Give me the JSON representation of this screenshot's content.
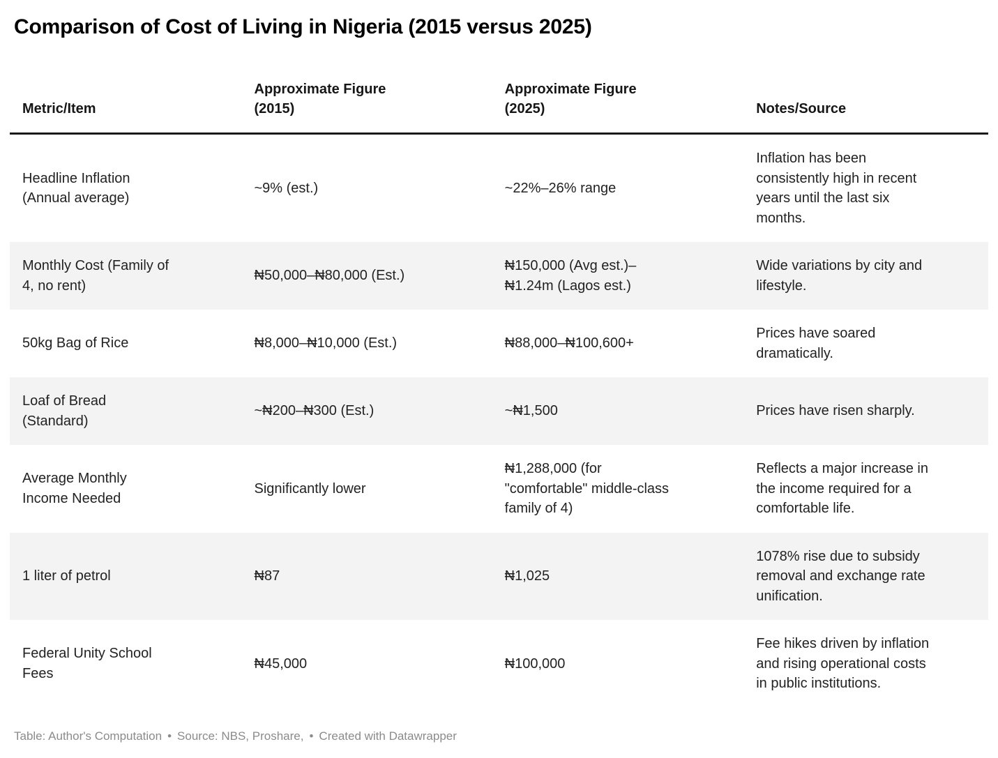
{
  "title": "Comparison of Cost of Living in Nigeria (2015 versus 2025)",
  "table": {
    "columns": [
      "Metric/Item",
      "Approximate Figure\n(2015)",
      "Approximate Figure\n(2025)",
      "Notes/Source"
    ],
    "rows": [
      {
        "metric": "Headline Inflation\n(Annual average)",
        "fig2015": "~9% (est.)",
        "fig2025": "~22%–26% range",
        "notes": "Inflation has been\nconsistently high in recent\nyears until the last six\nmonths."
      },
      {
        "metric": "Monthly Cost (Family of\n4, no rent)",
        "fig2015": "₦50,000–₦80,000 (Est.)",
        "fig2025": "₦150,000 (Avg est.)–\n₦1.24m (Lagos est.)",
        "notes": "Wide variations by city and\nlifestyle."
      },
      {
        "metric": "50kg Bag of Rice",
        "fig2015": "₦8,000–₦10,000 (Est.)",
        "fig2025": "₦88,000–₦100,600+",
        "notes": "Prices have soared\ndramatically."
      },
      {
        "metric": "Loaf of Bread\n(Standard)",
        "fig2015": "~₦200–₦300 (Est.)",
        "fig2025": "~₦1,500",
        "notes": "Prices have risen sharply."
      },
      {
        "metric": "Average Monthly\nIncome Needed",
        "fig2015": "Significantly lower",
        "fig2025": "₦1,288,000 (for\n\"comfortable\" middle-class\nfamily of 4)",
        "notes": "Reflects a major increase in\nthe income required for a\ncomfortable life."
      },
      {
        "metric": "1 liter of petrol",
        "fig2015": "₦87",
        "fig2025": "₦1,025",
        "notes": "1078% rise due to subsidy\nremoval and exchange rate\nunification."
      },
      {
        "metric": "Federal Unity School\nFees",
        "fig2015": "₦45,000",
        "fig2025": "₦100,000",
        "notes": "Fee hikes driven by inflation\nand rising operational costs\nin public institutions."
      }
    ]
  },
  "footer": {
    "table_credit": "Table: Author's Computation",
    "separator1": "•",
    "source_credit": "Source: NBS, Proshare, ",
    "separator2": "•",
    "created_credit": "Created with Datawrapper"
  },
  "colors": {
    "header_rule": "#1a1a1a",
    "row_alt_background": "#f3f3f3",
    "body_text": "#222222",
    "footer_text": "#8b8b8b"
  }
}
